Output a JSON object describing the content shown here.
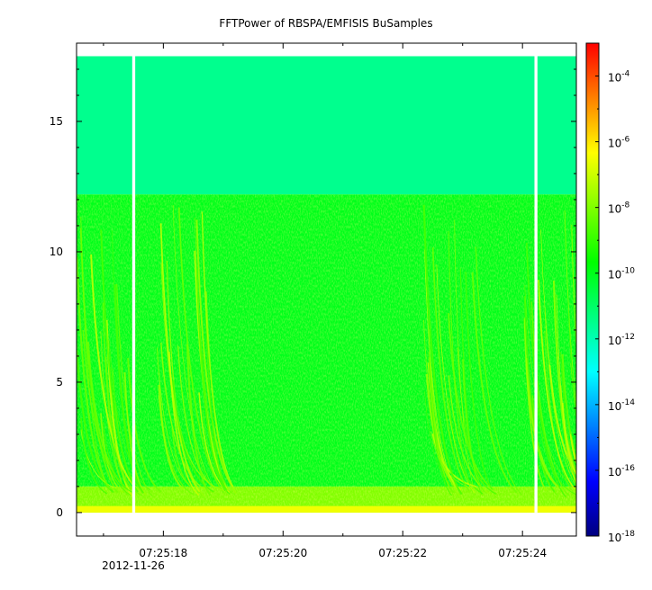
{
  "chart_data": {
    "type": "heatmap",
    "title": "FFTPower of RBSPA/EMFISIS  BuSamples",
    "xlabel": "",
    "ylabel": "",
    "x_axis": {
      "range_seconds": [
        16.55,
        24.9
      ],
      "tick_labels": [
        "07:25:18",
        "07:25:20",
        "07:25:22",
        "07:25:24"
      ],
      "tick_seconds": [
        18,
        20,
        22,
        24
      ],
      "minor_tick_seconds": [
        17,
        19,
        21,
        23
      ],
      "date_label": "2012-11-26"
    },
    "y_axis": {
      "range": [
        -0.9,
        18.0
      ],
      "tick_values": [
        0,
        5,
        10,
        15
      ],
      "tick_labels": [
        "0",
        "5",
        "10",
        "15"
      ],
      "data_extent": [
        0,
        17.5
      ]
    },
    "colorbar": {
      "scale": "log",
      "range": [
        1e-18,
        0.001
      ],
      "base_label": "10",
      "tick_exponents": [
        "-4",
        "-6",
        "-8",
        "-10",
        "-12",
        "-14",
        "-16",
        "-18"
      ],
      "tick_values": [
        0.0001,
        1e-06,
        1e-08,
        1e-10,
        1e-12,
        1e-14,
        1e-16,
        1e-18
      ],
      "colormap_stops": [
        "#00007f",
        "#0000ff",
        "#0080ff",
        "#00ffff",
        "#00ff80",
        "#00ff00",
        "#80ff00",
        "#ffff00",
        "#ff8000",
        "#ff0000"
      ]
    },
    "data_gaps_seconds": [
      [
        17.48,
        17.53
      ],
      [
        24.2,
        24.25
      ]
    ],
    "regions": [
      {
        "y_range": [
          12.2,
          17.5
        ],
        "power": 3e-12
      },
      {
        "y_range": [
          1.0,
          12.2
        ],
        "power": 1e-10
      },
      {
        "y_range": [
          0.0,
          1.0
        ],
        "power": 1e-08
      }
    ],
    "chorus_bursts_seconds": [
      17.1,
      18.4,
      22.9,
      24.5
    ]
  }
}
